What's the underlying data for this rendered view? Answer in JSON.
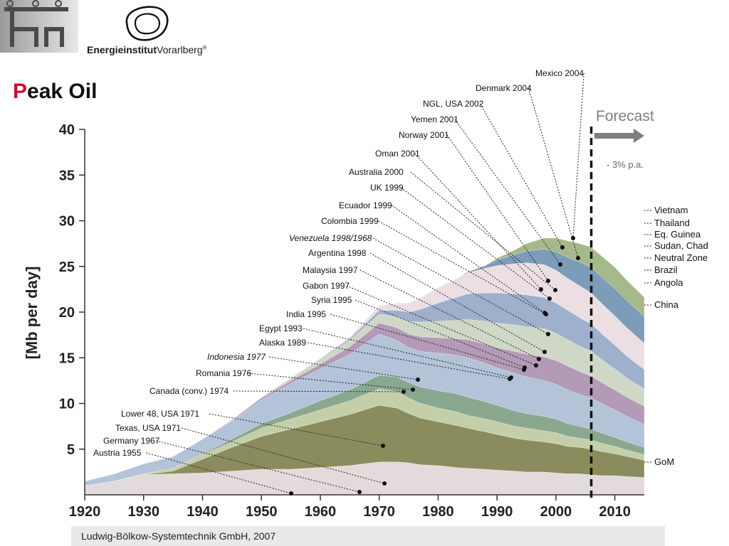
{
  "header": {
    "logo_name": "Energieinstitut",
    "logo_suffix": "Vorarlberg",
    "logo_mark": "®",
    "title_first": "P",
    "title_rest": "eak Oil"
  },
  "footer": {
    "credit": "Ludwig-Bölkow-Systemtechnik GmbH, 2007"
  },
  "colors": {
    "title_accent": "#c8102e",
    "forecast_arrow": "#7f7f7f"
  },
  "chart_data": {
    "type": "area",
    "ylabel": "[Mb per day]",
    "x_ticks": [
      1920,
      1930,
      1940,
      1950,
      1960,
      1970,
      1980,
      1990,
      2000,
      2010
    ],
    "y_ticks": [
      5,
      10,
      15,
      20,
      25,
      30,
      35,
      40
    ],
    "xlim": [
      1920,
      2015
    ],
    "ylim": [
      0,
      40
    ],
    "forecast_year": 2006,
    "forecast_label": "Forecast",
    "decline_label": "- 3% p.a.",
    "x": [
      1920,
      1925,
      1930,
      1935,
      1940,
      1945,
      1950,
      1955,
      1960,
      1965,
      1970,
      1973,
      1975,
      1977,
      1980,
      1983,
      1985,
      1988,
      1990,
      1993,
      1995,
      1998,
      2000,
      2002,
      2004,
      2006,
      2008,
      2010,
      2012,
      2015
    ],
    "series": [
      {
        "color": "#e3dbdb",
        "values": [
          1,
          1.5,
          2.2,
          2.3,
          2.4,
          2.6,
          2.8,
          2.8,
          3,
          3.2,
          3.6,
          3.6,
          3.5,
          3.3,
          3.2,
          3,
          2.9,
          2.8,
          2.7,
          2.6,
          2.5,
          2.5,
          2.4,
          2.3,
          2.3,
          2.2,
          2.1,
          2.1,
          2,
          1.9
        ]
      },
      {
        "color": "#8a8c5e",
        "values": [
          0,
          0,
          0,
          0.3,
          1.5,
          2.6,
          3.6,
          4.4,
          5,
          5.6,
          6.2,
          5.9,
          5.4,
          5.1,
          4.8,
          4.6,
          4.4,
          4.1,
          3.9,
          3.6,
          3.5,
          3.3,
          3.2,
          3,
          2.9,
          2.8,
          2.6,
          2.4,
          2.2,
          1.9
        ]
      },
      {
        "color": "#c4cfa9",
        "values": [
          0,
          0,
          0.1,
          0.3,
          0.5,
          0.6,
          0.9,
          1.1,
          1.3,
          1.5,
          1.8,
          1.8,
          1.7,
          1.6,
          1.5,
          1.5,
          1.4,
          1.4,
          1.4,
          1.3,
          1.3,
          1.2,
          1.2,
          1.1,
          1,
          1,
          0.9,
          0.8,
          0.7,
          0.6
        ]
      },
      {
        "color": "#8aa88f",
        "values": [
          0,
          0,
          0,
          0,
          0.1,
          0.3,
          0.5,
          0.7,
          1,
          1.2,
          1.5,
          1.6,
          1.7,
          1.8,
          1.9,
          2,
          2,
          1.9,
          1.8,
          1.7,
          1.6,
          1.6,
          1.5,
          1.4,
          1.3,
          1.2,
          1.1,
          1,
          0.9,
          0.8
        ]
      },
      {
        "color": "#b3c3d8",
        "values": [
          0.5,
          0.8,
          1.1,
          1.3,
          1.6,
          2,
          2.6,
          3.2,
          3.5,
          3.9,
          4.5,
          4,
          3.8,
          3.9,
          4.1,
          4.2,
          4.3,
          4.2,
          4.1,
          4.1,
          4,
          3.9,
          3.8,
          3.7,
          3.5,
          3.4,
          3.2,
          3,
          2.8,
          2.5
        ]
      },
      {
        "color": "#b39ab6",
        "values": [
          0,
          0,
          0,
          0,
          0,
          0.1,
          0.2,
          0.3,
          0.5,
          0.8,
          1.2,
          1.4,
          1.5,
          1.6,
          1.7,
          1.8,
          2,
          2.1,
          2.2,
          2.4,
          2.5,
          2.6,
          2.6,
          2.6,
          2.5,
          2.4,
          2.3,
          2.2,
          2.1,
          2
        ]
      },
      {
        "color": "#cfd7c6",
        "values": [
          0,
          0,
          0,
          0,
          0,
          0,
          0.1,
          0.3,
          0.5,
          0.7,
          1,
          1.2,
          1.4,
          1.6,
          1.8,
          2,
          2.2,
          2.5,
          2.7,
          2.9,
          3,
          3.1,
          3,
          2.9,
          2.8,
          2.7,
          2.5,
          2.3,
          2.1,
          1.9
        ]
      },
      {
        "color": "#9fb0cc",
        "values": [
          0,
          0,
          0,
          0,
          0,
          0,
          0,
          0,
          0.1,
          0.2,
          0.4,
          0.7,
          1,
          1.4,
          2,
          2.5,
          2.8,
          3.1,
          3.3,
          3.4,
          3.5,
          3.4,
          3.3,
          3.2,
          3.1,
          3,
          2.8,
          2.6,
          2.4,
          2.1
        ]
      },
      {
        "color": "#ecdfe4",
        "values": [
          0,
          0,
          0,
          0,
          0,
          0,
          0,
          0,
          0,
          0.2,
          0.5,
          0.8,
          1,
          1.3,
          1.7,
          2,
          2.3,
          2.7,
          3,
          3.3,
          3.5,
          3.6,
          3.6,
          3.5,
          3.5,
          3.4,
          3.3,
          3.2,
          3.1,
          2.9
        ]
      },
      {
        "color": "#7c9cb8",
        "values": [
          0,
          0,
          0,
          0,
          0,
          0,
          0,
          0,
          0,
          0,
          0,
          0,
          0,
          0,
          0,
          0,
          0.1,
          0.3,
          0.6,
          1,
          1.3,
          1.7,
          2,
          2.3,
          2.6,
          2.8,
          2.9,
          3,
          3,
          2.9
        ]
      },
      {
        "color": "#a6b98a",
        "values": [
          0,
          0,
          0,
          0,
          0,
          0,
          0,
          0,
          0,
          0,
          0,
          0,
          0,
          0,
          0,
          0,
          0,
          0,
          0.2,
          0.5,
          0.8,
          1.2,
          1.5,
          1.8,
          2,
          2.2,
          2.3,
          2.3,
          2.2,
          2.1
        ]
      }
    ],
    "labels_left": [
      "Mexico 2004",
      "Denmark 2004",
      "NGL, USA 2002",
      "Yemen 2001",
      "Norway 2001",
      "Oman 2001",
      "Australia 2000",
      "UK 1999",
      "Ecuador 1999",
      "Colombia 1999",
      "Venezuela 1998/1968",
      "Argentina 1998",
      "Malaysia 1997",
      "Gabon 1997",
      "Syria 1995",
      "India 1995",
      "Egypt 1993",
      "Alaska 1989",
      "Indonesia 1977",
      "Romania 1976",
      "Canada (conv.) 1974",
      "Lower 48, USA   1971",
      "Texas, USA 1971",
      "Germany 1967",
      "Austria 1955"
    ],
    "labels_right": [
      "Vietnam",
      "Thailand",
      "Eq. Guinea",
      "Sudan, Chad",
      "Neutral Zone",
      "Brazil",
      "Angola",
      "China",
      "GoM"
    ]
  }
}
